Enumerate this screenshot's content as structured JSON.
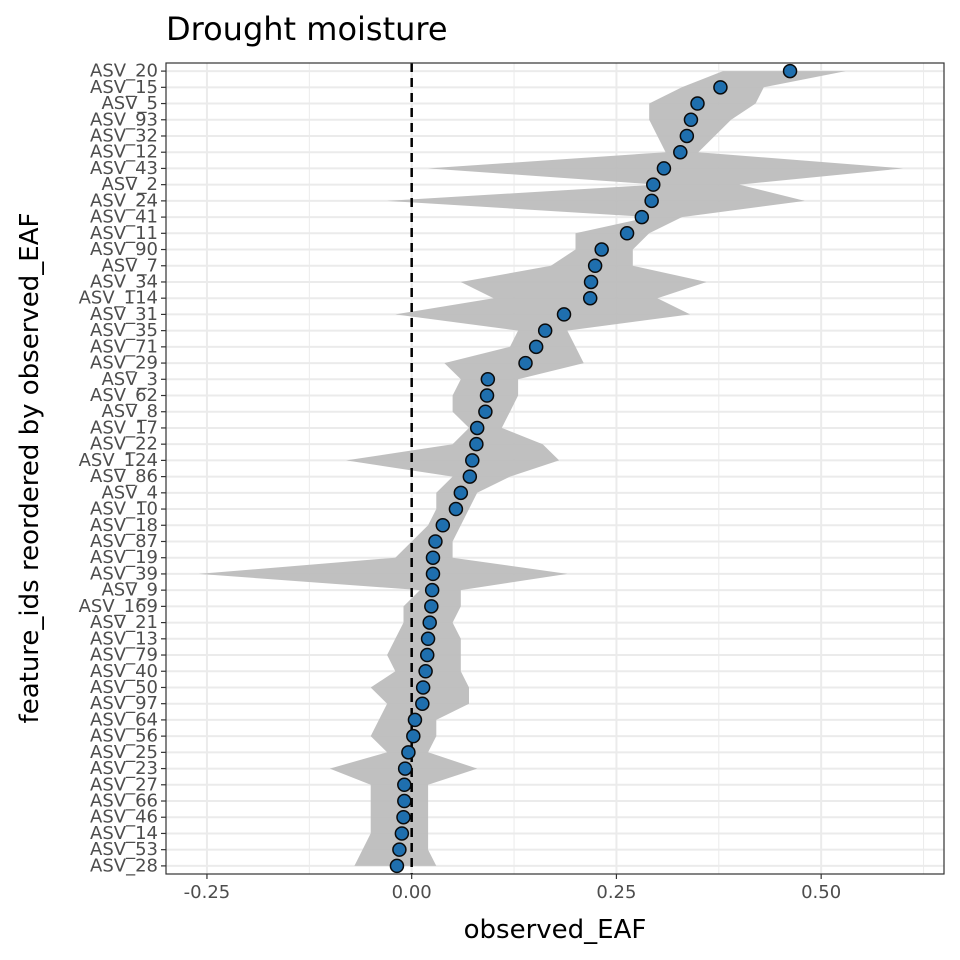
{
  "chart_data": {
    "type": "scatter",
    "title": "Drought moisture",
    "xlabel": "observed_EAF",
    "ylabel": "feature_ids reordered by observed_EAF",
    "xlim": [
      -0.3,
      0.65
    ],
    "x_ticks": [
      -0.25,
      0.0,
      0.25,
      0.5
    ],
    "x_tick_labels": [
      "-0.25",
      "0.00",
      "0.25",
      "0.50"
    ],
    "reference_line": 0.0,
    "grid": true,
    "colors": {
      "point_fill": "#1f6fae",
      "point_stroke": "#0a0a0a",
      "ribbon": "#bdbdbd",
      "grid": "#ebebeb",
      "panel_border": "#333333"
    },
    "categories": [
      "ASV_20",
      "ASV_15",
      "ASV_5",
      "ASV_93",
      "ASV_32",
      "ASV_12",
      "ASV_43",
      "ASV_2",
      "ASV_24",
      "ASV_41",
      "ASV_11",
      "ASV_90",
      "ASV_7",
      "ASV_34",
      "ASV_114",
      "ASV_31",
      "ASV_35",
      "ASV_71",
      "ASV_29",
      "ASV_3",
      "ASV_62",
      "ASV_8",
      "ASV_17",
      "ASV_22",
      "ASV_124",
      "ASV_86",
      "ASV_4",
      "ASV_10",
      "ASV_18",
      "ASV_87",
      "ASV_19",
      "ASV_39",
      "ASV_9",
      "ASV_169",
      "ASV_21",
      "ASV_13",
      "ASV_79",
      "ASV_40",
      "ASV_50",
      "ASV_97",
      "ASV_64",
      "ASV_56",
      "ASV_25",
      "ASV_23",
      "ASV_27",
      "ASV_66",
      "ASV_46",
      "ASV_14",
      "ASV_53",
      "ASV_28"
    ],
    "values": [
      0.462,
      0.377,
      0.349,
      0.341,
      0.336,
      0.328,
      0.308,
      0.295,
      0.293,
      0.281,
      0.263,
      0.232,
      0.224,
      0.219,
      0.218,
      0.186,
      0.163,
      0.152,
      0.139,
      0.093,
      0.092,
      0.09,
      0.08,
      0.079,
      0.074,
      0.071,
      0.06,
      0.054,
      0.038,
      0.029,
      0.026,
      0.026,
      0.025,
      0.024,
      0.022,
      0.02,
      0.019,
      0.017,
      0.014,
      0.013,
      0.004,
      0.002,
      -0.004,
      -0.008,
      -0.009,
      -0.009,
      -0.01,
      -0.012,
      -0.015,
      -0.018
    ],
    "lower": [
      0.38,
      0.33,
      0.29,
      0.29,
      0.3,
      0.31,
      0.02,
      0.3,
      -0.03,
      0.29,
      0.2,
      0.2,
      0.17,
      0.06,
      0.1,
      -0.02,
      0.13,
      0.12,
      0.04,
      0.06,
      0.05,
      0.05,
      0.07,
      0.05,
      -0.08,
      0.05,
      0.03,
      0.03,
      0.02,
      0.0,
      -0.02,
      -0.26,
      0.01,
      -0.01,
      -0.01,
      -0.02,
      -0.03,
      -0.02,
      -0.05,
      -0.03,
      -0.04,
      -0.05,
      -0.03,
      -0.1,
      -0.05,
      -0.05,
      -0.05,
      -0.05,
      -0.06,
      -0.07
    ],
    "upper": [
      0.53,
      0.43,
      0.42,
      0.39,
      0.37,
      0.35,
      0.6,
      0.4,
      0.48,
      0.33,
      0.29,
      0.27,
      0.27,
      0.36,
      0.3,
      0.34,
      0.19,
      0.2,
      0.21,
      0.13,
      0.13,
      0.12,
      0.11,
      0.16,
      0.18,
      0.12,
      0.08,
      0.07,
      0.06,
      0.05,
      0.05,
      0.19,
      0.06,
      0.06,
      0.05,
      0.06,
      0.06,
      0.06,
      0.07,
      0.07,
      0.03,
      0.03,
      0.02,
      0.08,
      0.02,
      0.02,
      0.02,
      0.02,
      0.02,
      0.03
    ]
  }
}
